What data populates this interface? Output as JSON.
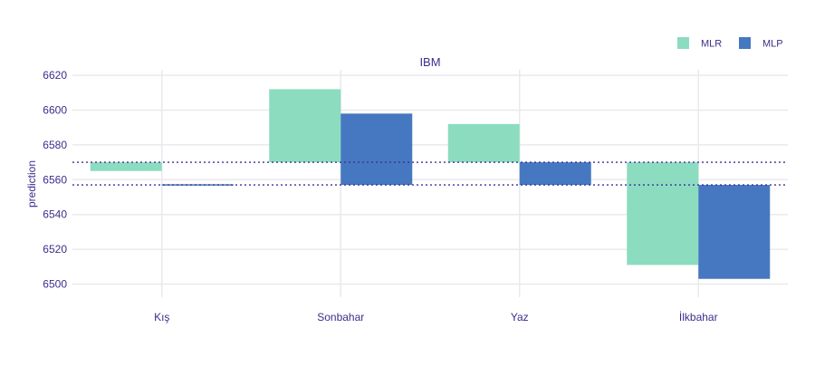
{
  "chart_data": {
    "type": "bar",
    "title": "IBM",
    "xlabel": "",
    "ylabel": "prediction",
    "categories": [
      "Kış",
      "Sonbahar",
      "Yaz",
      "İlkbahar"
    ],
    "ylim": [
      6495,
      6624
    ],
    "yticks": [
      6500,
      6520,
      6540,
      6560,
      6580,
      6600,
      6620
    ],
    "grid": true,
    "legend_position": "top-right",
    "series": [
      {
        "name": "MLR",
        "color": "#8cdcc0",
        "base": 6570,
        "values": [
          6565,
          6612,
          6592,
          6511
        ]
      },
      {
        "name": "MLP",
        "color": "#4578c0",
        "base": 6557,
        "values": [
          6557,
          6598,
          6570,
          6503
        ]
      }
    ],
    "reference_lines": [
      {
        "value": 6570,
        "style": "dotted",
        "color": "#3b2e9a"
      },
      {
        "value": 6557,
        "style": "dotted",
        "color": "#3b2e9a"
      }
    ]
  },
  "colors": {
    "text": "#3b2e8c",
    "grid": "#e9e9ee"
  }
}
